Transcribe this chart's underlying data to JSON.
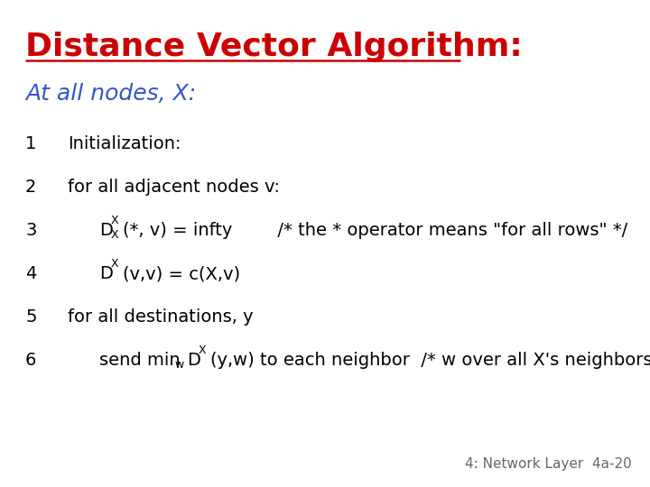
{
  "title": "Distance Vector Algorithm:",
  "title_color": "#cc0000",
  "title_fontsize": 26,
  "subtitle": "At all nodes, X:",
  "subtitle_color": "#3355cc",
  "subtitle_fontsize": 18,
  "background_color": "#ffffff",
  "footer": "4: Network Layer  4a-20",
  "footer_color": "#666666",
  "footer_fontsize": 11,
  "code_fontsize": 14,
  "code_color": "#000000"
}
